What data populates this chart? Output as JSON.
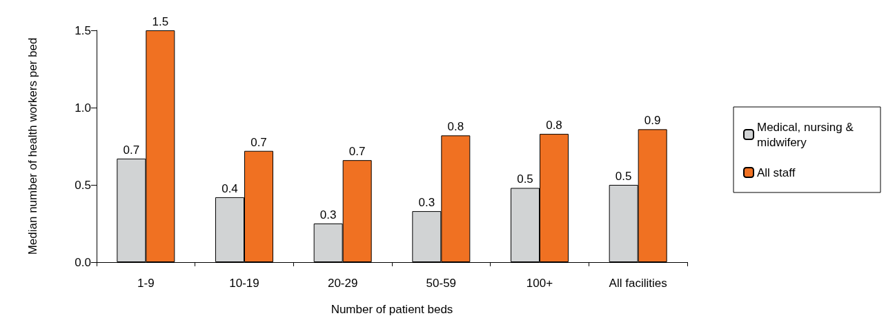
{
  "chart_data": {
    "type": "bar",
    "xlabel": "Number of patient beds",
    "ylabel": "Median number of health workers per bed",
    "categories": [
      "1-9",
      "10-19",
      "20-29",
      "50-59",
      "100+",
      "All facilities"
    ],
    "series": [
      {
        "name": "Medical, nursing & midwifery",
        "color": "#d1d3d4",
        "values": [
          0.67,
          0.42,
          0.25,
          0.33,
          0.48,
          0.5
        ],
        "value_labels": [
          "0.7",
          "0.4",
          "0.3",
          "0.3",
          "0.5",
          "0.5"
        ]
      },
      {
        "name": "All staff",
        "color": "#f07122",
        "values": [
          1.5,
          0.72,
          0.66,
          0.82,
          0.83,
          0.86
        ],
        "value_labels": [
          "1.5",
          "0.7",
          "0.7",
          "0.8",
          "0.8",
          "0.9"
        ]
      }
    ],
    "ylim": [
      0,
      1.5
    ],
    "yticks": [
      {
        "value": 0,
        "label": "0.0"
      },
      {
        "value": 0.5,
        "label": "0.5"
      },
      {
        "value": 1,
        "label": "1.0"
      },
      {
        "value": 1.5,
        "label": "1.5"
      }
    ],
    "grid": false,
    "legend": "right"
  }
}
